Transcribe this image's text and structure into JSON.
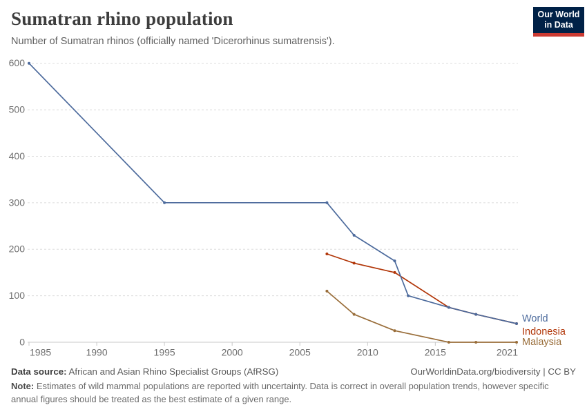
{
  "header": {
    "title": "Sumatran rhino population",
    "subtitle": "Number of Sumatran rhinos (officially named 'Dicerorhinus sumatrensis').",
    "logo": {
      "line1": "Our World",
      "line2": "in Data",
      "bg_color": "#002147",
      "stripe_color": "#CB3A32"
    }
  },
  "chart_data": {
    "type": "line",
    "title": "Sumatran rhino population",
    "xlabel": "",
    "ylabel": "",
    "xlim": [
      1985,
      2021
    ],
    "ylim": [
      0,
      600
    ],
    "x_ticks": [
      1985,
      1990,
      1995,
      2000,
      2005,
      2010,
      2015,
      2021
    ],
    "y_ticks": [
      0,
      100,
      200,
      300,
      400,
      500,
      600
    ],
    "grid": "horizontal-dashed",
    "legend_position": "end-of-line-labels",
    "series": [
      {
        "name": "Indonesia",
        "color": "#B13507",
        "points": [
          [
            2007,
            190
          ],
          [
            2009,
            170
          ],
          [
            2012,
            150
          ],
          [
            2016,
            75
          ],
          [
            2018,
            60
          ],
          [
            2021,
            40
          ]
        ]
      },
      {
        "name": "Malaysia",
        "color": "#996D39",
        "points": [
          [
            2007,
            110
          ],
          [
            2009,
            60
          ],
          [
            2012,
            25
          ],
          [
            2016,
            0
          ],
          [
            2018,
            0
          ],
          [
            2021,
            0
          ]
        ]
      },
      {
        "name": "World",
        "color": "#4C6A9C",
        "points": [
          [
            1985,
            600
          ],
          [
            1995,
            300
          ],
          [
            2007,
            300
          ],
          [
            2009,
            230
          ],
          [
            2012,
            175
          ],
          [
            2013,
            100
          ],
          [
            2016,
            75
          ],
          [
            2018,
            60
          ],
          [
            2021,
            40
          ]
        ]
      }
    ],
    "colors": {
      "grid": "#dcdcdc",
      "axis": "#c8c8c8",
      "tick_text": "#6e6e6e"
    }
  },
  "footer": {
    "datasource_label": "Data source:",
    "datasource_text": " African and Asian Rhino Specialist Groups (AfRSG)",
    "link_text": "OurWorldinData.org/biodiversity | CC BY",
    "note_label": "Note:",
    "note_text": " Estimates of wild mammal populations are reported with uncertainty. Data is correct in overall population trends, however specific annual figures should be treated as the best estimate of a given range."
  }
}
